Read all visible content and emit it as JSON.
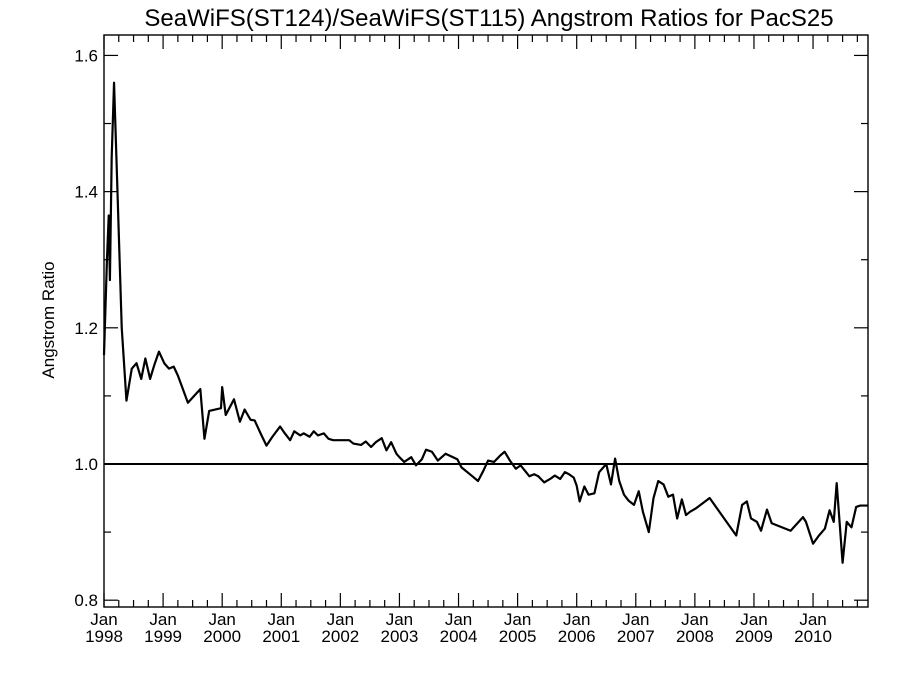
{
  "chart_data": {
    "type": "line",
    "title": "SeaWiFS(ST124)/SeaWiFS(ST115)  Angstrom Ratios for PacS25",
    "xlabel": "",
    "ylabel": "Angstrom Ratio",
    "xlim": [
      1998.0,
      2010.93
    ],
    "ylim": [
      0.79,
      1.63
    ],
    "y_ticks": [
      0.8,
      1.0,
      1.2,
      1.4,
      1.6
    ],
    "y_tick_labels": [
      "0.8",
      "1.0",
      "1.2",
      "1.4",
      "1.6"
    ],
    "x_ticks": [
      1998,
      1999,
      2000,
      2001,
      2002,
      2003,
      2004,
      2005,
      2006,
      2007,
      2008,
      2009,
      2010
    ],
    "x_tick_labels": [
      {
        "month": "Jan",
        "year": "1998"
      },
      {
        "month": "Jan",
        "year": "1999"
      },
      {
        "month": "Jan",
        "year": "2000"
      },
      {
        "month": "Jan",
        "year": "2001"
      },
      {
        "month": "Jan",
        "year": "2002"
      },
      {
        "month": "Jan",
        "year": "2003"
      },
      {
        "month": "Jan",
        "year": "2004"
      },
      {
        "month": "Jan",
        "year": "2005"
      },
      {
        "month": "Jan",
        "year": "2006"
      },
      {
        "month": "Jan",
        "year": "2007"
      },
      {
        "month": "Jan",
        "year": "2008"
      },
      {
        "month": "Jan",
        "year": "2009"
      },
      {
        "month": "Jan",
        "year": "2010"
      }
    ],
    "reference_line": {
      "y": 1.0
    },
    "grid": false,
    "series": [
      {
        "color": "#000000",
        "x": [
          1998.0,
          1998.05,
          1998.08,
          1998.1,
          1998.13,
          1998.17,
          1998.21,
          1998.3,
          1998.38,
          1998.47,
          1998.55,
          1998.63,
          1998.7,
          1998.78,
          1998.85,
          1998.93,
          1999.02,
          1999.1,
          1999.18,
          1999.25,
          1999.42,
          1999.63,
          1999.7,
          1999.78,
          1999.98,
          2000.0,
          2000.06,
          2000.2,
          2000.3,
          2000.38,
          2000.48,
          2000.55,
          2000.65,
          2000.75,
          2000.85,
          2000.98,
          2001.06,
          2001.15,
          2001.22,
          2001.32,
          2001.38,
          2001.48,
          2001.55,
          2001.62,
          2001.72,
          2001.8,
          2001.88,
          2001.98,
          2002.15,
          2002.22,
          2002.35,
          2002.43,
          2002.52,
          2002.6,
          2002.7,
          2002.78,
          2002.86,
          2002.95,
          2003.0,
          2003.08,
          2003.2,
          2003.28,
          2003.38,
          2003.45,
          2003.55,
          2003.65,
          2003.78,
          2003.98,
          2004.05,
          2004.22,
          2004.33,
          2004.42,
          2004.5,
          2004.6,
          2004.7,
          2004.78,
          2004.87,
          2004.97,
          2005.05,
          2005.2,
          2005.28,
          2005.35,
          2005.45,
          2005.55,
          2005.63,
          2005.72,
          2005.8,
          2005.87,
          2005.95,
          2006.0,
          2006.05,
          2006.13,
          2006.2,
          2006.3,
          2006.38,
          2006.5,
          2006.58,
          2006.65,
          2006.72,
          2006.8,
          2006.88,
          2006.97,
          2007.05,
          2007.12,
          2007.22,
          2007.3,
          2007.38,
          2007.47,
          2007.55,
          2007.63,
          2007.7,
          2007.78,
          2007.85,
          2007.92,
          2008.02,
          2008.25,
          2008.7,
          2008.8,
          2008.88,
          2008.95,
          2009.05,
          2009.12,
          2009.22,
          2009.3,
          2009.62,
          2009.83,
          2009.88,
          2010.0,
          2010.1,
          2010.2,
          2010.28,
          2010.35,
          2010.4,
          2010.5,
          2010.57,
          2010.65,
          2010.73,
          2010.8,
          2010.93
        ],
        "y": [
          1.16,
          1.3,
          1.365,
          1.27,
          1.45,
          1.56,
          1.45,
          1.2,
          1.093,
          1.14,
          1.148,
          1.125,
          1.155,
          1.125,
          1.145,
          1.165,
          1.148,
          1.14,
          1.143,
          1.13,
          1.09,
          1.11,
          1.037,
          1.078,
          1.082,
          1.113,
          1.072,
          1.095,
          1.062,
          1.08,
          1.065,
          1.064,
          1.045,
          1.027,
          1.04,
          1.055,
          1.045,
          1.035,
          1.048,
          1.042,
          1.045,
          1.04,
          1.048,
          1.042,
          1.045,
          1.037,
          1.035,
          1.035,
          1.035,
          1.03,
          1.028,
          1.033,
          1.025,
          1.032,
          1.038,
          1.02,
          1.032,
          1.015,
          1.01,
          1.003,
          1.01,
          0.998,
          1.007,
          1.021,
          1.018,
          1.005,
          1.015,
          1.007,
          0.995,
          0.983,
          0.975,
          0.99,
          1.005,
          1.003,
          1.012,
          1.018,
          1.005,
          0.993,
          0.998,
          0.982,
          0.985,
          0.982,
          0.973,
          0.978,
          0.983,
          0.978,
          0.988,
          0.985,
          0.98,
          0.968,
          0.945,
          0.967,
          0.955,
          0.957,
          0.988,
          1.0,
          0.97,
          1.008,
          0.975,
          0.955,
          0.946,
          0.94,
          0.96,
          0.93,
          0.9,
          0.95,
          0.975,
          0.97,
          0.952,
          0.955,
          0.92,
          0.948,
          0.925,
          0.93,
          0.935,
          0.95,
          0.895,
          0.94,
          0.945,
          0.92,
          0.915,
          0.902,
          0.933,
          0.913,
          0.902,
          0.922,
          0.915,
          0.883,
          0.895,
          0.905,
          0.932,
          0.915,
          0.972,
          0.855,
          0.915,
          0.907,
          0.937,
          0.939,
          0.939
        ]
      }
    ]
  }
}
